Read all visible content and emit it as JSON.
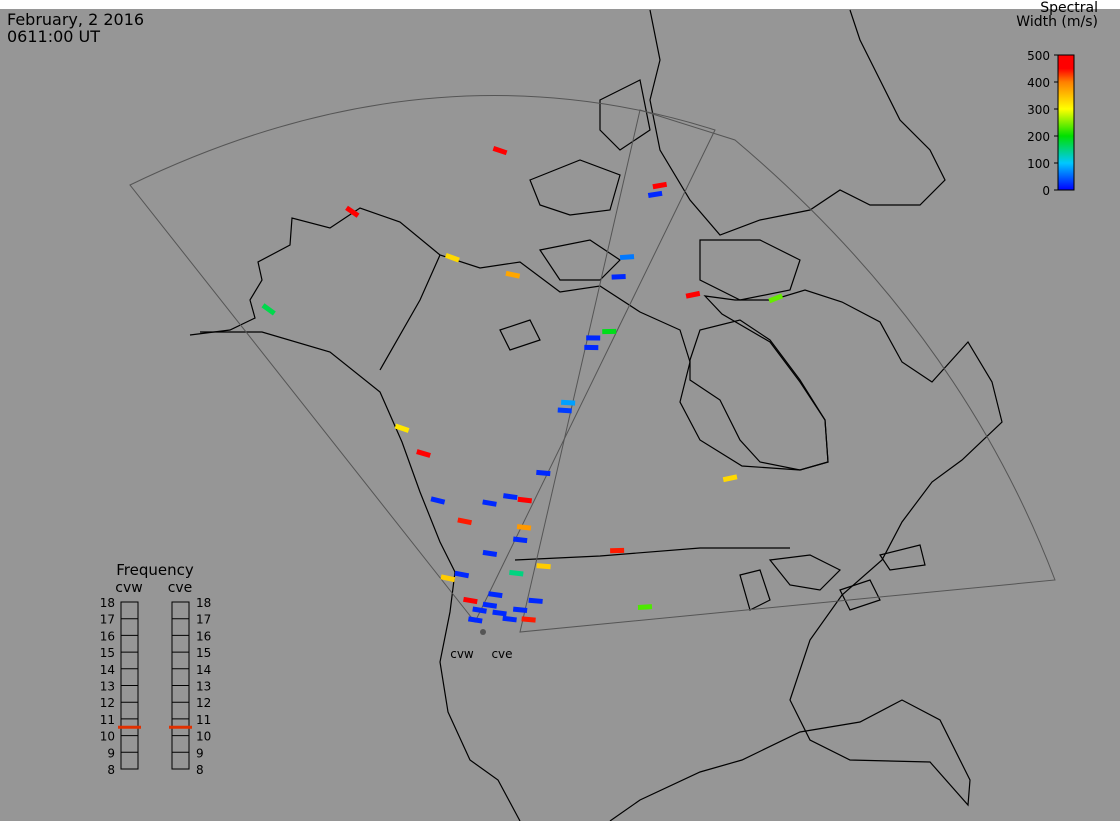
{
  "header": {
    "date": "February, 2 2016",
    "time": "0611:00 UT"
  },
  "colorbar": {
    "title": [
      "Spectral",
      "Width (m/s)"
    ],
    "lim": [
      0,
      500
    ],
    "ticks": [
      0,
      100,
      200,
      300,
      400,
      500
    ]
  },
  "frequency": {
    "title": "Frequency",
    "lim": [
      8,
      18
    ],
    "ticks": [
      8,
      9,
      10,
      11,
      12,
      13,
      14,
      15,
      16,
      17,
      18
    ],
    "radars": [
      {
        "name": "cvw",
        "value": 10.5
      },
      {
        "name": "cve",
        "value": 10.5
      }
    ]
  },
  "map": {
    "radar_labels": [
      "cvw",
      "cve"
    ],
    "echoes": [
      {
        "lat": 70.2,
        "lon": -130.4,
        "width": 450
      },
      {
        "lat": 62.6,
        "lon": -146.4,
        "width": 450
      },
      {
        "lat": 54.6,
        "lon": -147.8,
        "width": 170
      },
      {
        "lat": 62.9,
        "lon": -131.9,
        "width": 330
      },
      {
        "lat": 62.9,
        "lon": -123.6,
        "width": 370
      },
      {
        "lat": 68.7,
        "lon": -101.9,
        "width": 450
      },
      {
        "lat": 68.2,
        "lon": -102.9,
        "width": 20
      },
      {
        "lat": 64.5,
        "lon": -108.2,
        "width": 60
      },
      {
        "lat": 63.3,
        "lon": -109.5,
        "width": 20
      },
      {
        "lat": 61.6,
        "lon": -100.2,
        "width": 450
      },
      {
        "lat": 59.9,
        "lon": -90.6,
        "width": 240
      },
      {
        "lat": 59.9,
        "lon": -110.9,
        "width": 190
      },
      {
        "lat": 59.5,
        "lon": -112.8,
        "width": 20
      },
      {
        "lat": 58.9,
        "lon": -113.0,
        "width": 20
      },
      {
        "lat": 55.4,
        "lon": -115.3,
        "width": 80
      },
      {
        "lat": 54.9,
        "lon": -115.6,
        "width": 30
      },
      {
        "lat": 51.8,
        "lon": -130.9,
        "width": 320
      },
      {
        "lat": 50.7,
        "lon": -128.3,
        "width": 450
      },
      {
        "lat": 50.9,
        "lon": -117.2,
        "width": 20
      },
      {
        "lat": 49.9,
        "lon": -100.3,
        "width": 330
      },
      {
        "lat": 48.1,
        "lon": -126.0,
        "width": 20
      },
      {
        "lat": 48.6,
        "lon": -121.6,
        "width": 20
      },
      {
        "lat": 49.2,
        "lon": -119.9,
        "width": 20
      },
      {
        "lat": 49.1,
        "lon": -118.6,
        "width": 450
      },
      {
        "lat": 47.2,
        "lon": -123.4,
        "width": 440
      },
      {
        "lat": 47.4,
        "lon": -118.4,
        "width": 380
      },
      {
        "lat": 46.2,
        "lon": -110.6,
        "width": 440
      },
      {
        "lat": 46.6,
        "lon": -118.6,
        "width": 20
      },
      {
        "lat": 45.1,
        "lon": -116.5,
        "width": 340
      },
      {
        "lat": 42.6,
        "lon": -108.6,
        "width": 230
      },
      {
        "lat": 44.5,
        "lon": -118.6,
        "width": 150
      },
      {
        "lat": 43.5,
        "lon": -123.8,
        "width": 340
      },
      {
        "lat": 45.5,
        "lon": -120.9,
        "width": 20
      },
      {
        "lat": 42.9,
        "lon": -116.9,
        "width": 20
      },
      {
        "lat": 41.7,
        "lon": -117.3,
        "width": 440
      },
      {
        "lat": 43.9,
        "lon": -122.8,
        "width": 20
      },
      {
        "lat": 42.4,
        "lon": -121.8,
        "width": 450
      },
      {
        "lat": 41.9,
        "lon": -121.0,
        "width": 20
      },
      {
        "lat": 42.3,
        "lon": -120.3,
        "width": 20
      },
      {
        "lat": 41.9,
        "lon": -119.5,
        "width": 20
      },
      {
        "lat": 41.6,
        "lon": -118.7,
        "width": 20
      },
      {
        "lat": 41.25,
        "lon": -121.2,
        "width": 20
      },
      {
        "lat": 43.0,
        "lon": -120.0,
        "width": 20
      },
      {
        "lat": 42.25,
        "lon": -118.0,
        "width": 20
      }
    ]
  }
}
